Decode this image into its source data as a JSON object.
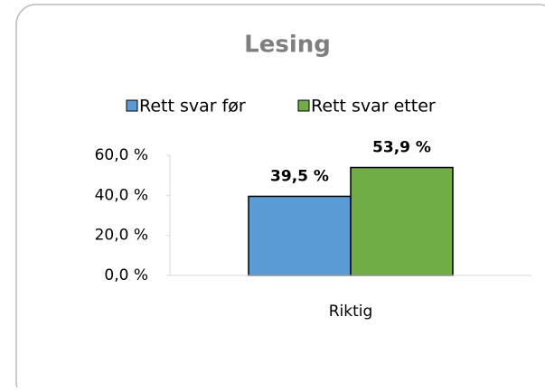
{
  "chart_data": {
    "type": "bar",
    "title": "Lesing",
    "categories": [
      "Riktig"
    ],
    "series": [
      {
        "name": "Rett svar før",
        "color": "#5b9bd5",
        "values": [
          39.5
        ],
        "value_labels": [
          "39,5 %"
        ]
      },
      {
        "name": "Rett svar etter",
        "color": "#70ad47",
        "values": [
          53.9
        ],
        "value_labels": [
          "53,9 %"
        ]
      }
    ],
    "ylim": [
      0,
      60
    ],
    "yticks": [
      {
        "value": 0,
        "label": "0,0 %"
      },
      {
        "value": 20,
        "label": "20,0 %"
      },
      {
        "value": 40,
        "label": "40,0 %"
      },
      {
        "value": 60,
        "label": "60,0 %"
      }
    ],
    "legend": "top"
  }
}
